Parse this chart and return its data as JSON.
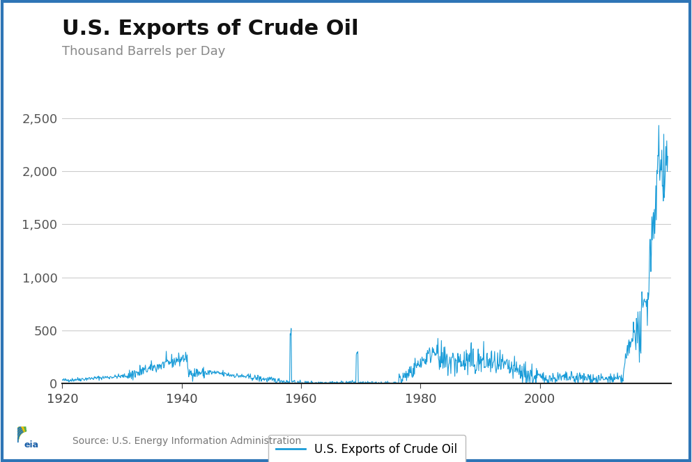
{
  "title": "U.S. Exports of Crude Oil",
  "subtitle": "Thousand Barrels per Day",
  "legend_label": "U.S. Exports of Crude Oil",
  "line_color": "#1a9cd8",
  "line_width": 0.8,
  "ylim": [
    0,
    2700
  ],
  "yticks": [
    0,
    500,
    1000,
    1500,
    2000,
    2500
  ],
  "ytick_labels": [
    "0",
    "500",
    "1,000",
    "1,500",
    "2,000",
    "2,500"
  ],
  "xlim_start": 1920,
  "xlim_end": 2022,
  "xticks": [
    1920,
    1940,
    1960,
    1980,
    2000
  ],
  "bg_color": "#ffffff",
  "grid_color": "#cccccc",
  "title_fontsize": 22,
  "subtitle_fontsize": 13,
  "axis_fontsize": 13,
  "source_text": "Source: U.S. Energy Information Administration",
  "border_color": "#2e75b6"
}
